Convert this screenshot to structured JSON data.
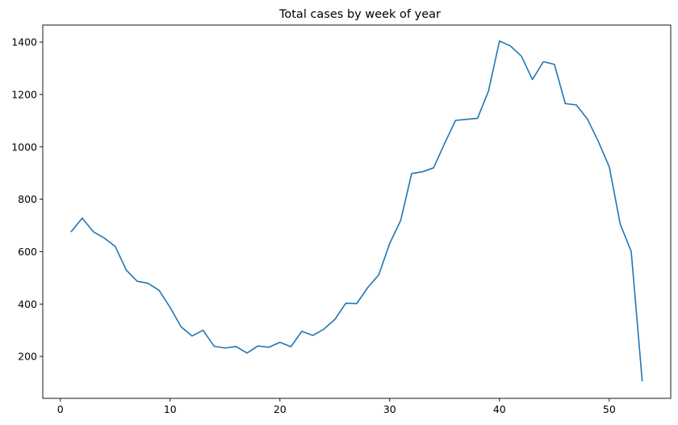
{
  "chart_data": {
    "type": "line",
    "title": "Total cases by week of year",
    "xlabel": "",
    "ylabel": "",
    "xlim": [
      -1.6,
      55.6
    ],
    "ylim": [
      40,
      1465
    ],
    "xticks": [
      0,
      10,
      20,
      30,
      40,
      50
    ],
    "yticks": [
      200,
      400,
      600,
      800,
      1000,
      1200,
      1400
    ],
    "grid": false,
    "legend": "none",
    "series": [
      {
        "color": "#1f77b4",
        "x": [
          1,
          2,
          3,
          4,
          5,
          6,
          7,
          8,
          9,
          10,
          11,
          12,
          13,
          14,
          15,
          16,
          17,
          18,
          19,
          20,
          21,
          22,
          23,
          24,
          25,
          26,
          27,
          28,
          29,
          30,
          31,
          32,
          33,
          34,
          35,
          36,
          37,
          38,
          39,
          40,
          41,
          42,
          43,
          44,
          45,
          46,
          47,
          48,
          49,
          50,
          51,
          52,
          53
        ],
        "values": [
          677,
          728,
          676,
          652,
          620,
          530,
          487,
          479,
          452,
          387,
          313,
          278,
          300,
          239,
          232,
          238,
          213,
          240,
          235,
          254,
          237,
          296,
          280,
          304,
          341,
          403,
          402,
          463,
          511,
          631,
          719,
          898,
          905,
          920,
          1013,
          1101,
          1105,
          1109,
          1213,
          1404,
          1385,
          1346,
          1257,
          1325,
          1315,
          1165,
          1160,
          1107,
          1021,
          924,
          705,
          601,
          107
        ]
      }
    ]
  }
}
